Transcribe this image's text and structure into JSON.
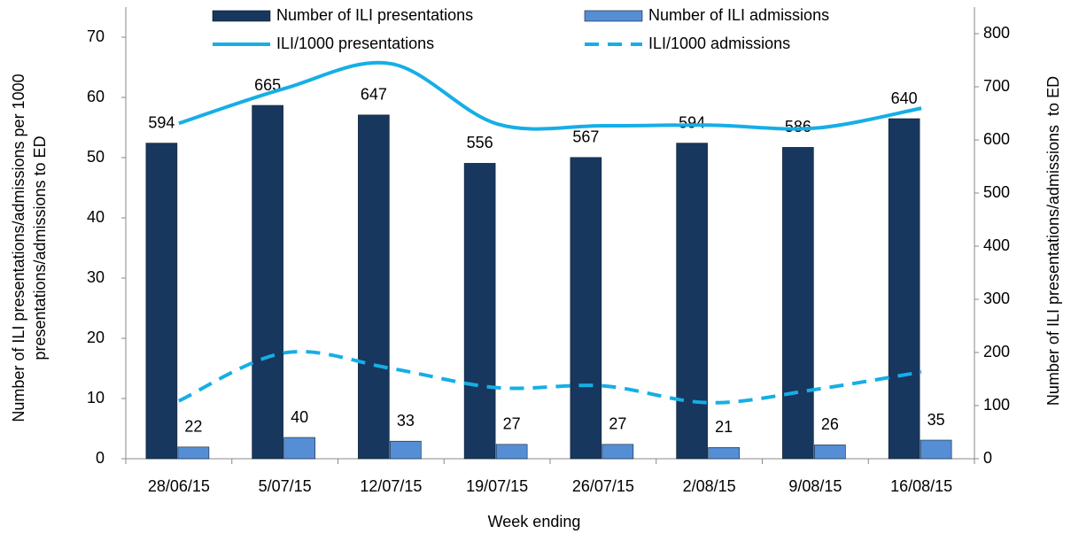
{
  "chart_data": {
    "type": "bar-line",
    "categories": [
      "28/06/15",
      "5/07/15",
      "12/07/15",
      "19/07/15",
      "26/07/15",
      "2/08/15",
      "9/08/15",
      "16/08/15"
    ],
    "xlabel": "Week ending",
    "ylabel": [
      "Number of ILI presentations/admissions per 1000",
      "presentations/admissions to ED"
    ],
    "y2label": "Number of ILI presentations/admissions  to ED",
    "ylim": [
      0,
      70
    ],
    "yticks": [
      0,
      10,
      20,
      30,
      40,
      50,
      60,
      70
    ],
    "y2lim": [
      0,
      800
    ],
    "y2ticks": [
      0,
      100,
      200,
      300,
      400,
      500,
      600,
      700,
      800
    ],
    "series": [
      {
        "name": "Number of ILI presentations",
        "type": "bar",
        "axis": "y2",
        "color": "#17375e",
        "values": [
          594,
          665,
          647,
          556,
          567,
          594,
          586,
          640
        ]
      },
      {
        "name": "Number of ILI admissions",
        "type": "bar",
        "axis": "y2",
        "color": "#558ed5",
        "values": [
          22,
          40,
          33,
          27,
          27,
          21,
          26,
          35
        ]
      },
      {
        "name": "ILI/1000 presentations",
        "type": "line",
        "color": "#16aee6",
        "dashed": false,
        "values": [
          55.7,
          61.5,
          65.6,
          55.6,
          55.3,
          55.4,
          54.9,
          58.2
        ]
      },
      {
        "name": "ILI/1000 admissions",
        "type": "line",
        "color": "#16aee6",
        "dashed": true,
        "values": [
          9.6,
          17.6,
          15.0,
          11.8,
          12.1,
          9.3,
          11.5,
          14.4
        ]
      }
    ]
  }
}
